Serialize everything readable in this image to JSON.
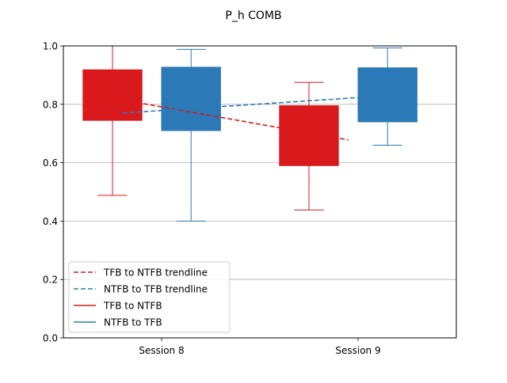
{
  "chart_data": {
    "type": "box",
    "title": "P_h COMB",
    "xlabel": "",
    "ylabel": "",
    "categories": [
      "Session 8",
      "Session 9"
    ],
    "ylim": [
      0,
      1.0
    ],
    "yticks": [
      "0.0",
      "0.2",
      "0.4",
      "0.6",
      "0.8",
      "1.0"
    ],
    "ytick_values": [
      0.0,
      0.2,
      0.4,
      0.6,
      0.8,
      1.0
    ],
    "grid": "horizontal",
    "legend_placement": "lower-left",
    "colors": {
      "tfb_to_ntfb": "#d9191c",
      "ntfb_to_tfb": "#2c79b7",
      "grid": "#b0b0b0"
    },
    "series": [
      {
        "name": "TFB to NTFB",
        "color": "#d9191c",
        "offset": -0.25,
        "boxes": [
          {
            "category": "Session 8",
            "whislo": 0.488,
            "q1": 0.745,
            "q3": 0.918,
            "whishi": 1.0
          },
          {
            "category": "Session 9",
            "whislo": 0.438,
            "q1": 0.59,
            "q3": 0.795,
            "whishi": 0.875
          }
        ]
      },
      {
        "name": "NTFB to TFB",
        "color": "#2c79b7",
        "offset": 0.15,
        "boxes": [
          {
            "category": "Session 8",
            "whislo": 0.4,
            "q1": 0.71,
            "q3": 0.927,
            "whishi": 0.988
          },
          {
            "category": "Session 9",
            "whislo": 0.66,
            "q1": 0.74,
            "q3": 0.925,
            "whishi": 0.993
          }
        ]
      }
    ],
    "trendlines": [
      {
        "name": "TFB to NTFB trendline",
        "color": "#d9191c",
        "x": [
          -0.2,
          0.95
        ],
        "y": [
          0.815,
          0.678
        ]
      },
      {
        "name": "NTFB to TFB trendline",
        "color": "#2c79b7",
        "x": [
          -0.2,
          1.0
        ],
        "y": [
          0.77,
          0.823
        ]
      }
    ],
    "legend": [
      {
        "label": "TFB to NTFB trendline",
        "style": "dashed",
        "color": "#d9191c"
      },
      {
        "label": "NTFB to TFB trendline",
        "style": "dashed",
        "color": "#2c79b7"
      },
      {
        "label": "TFB to NTFB",
        "style": "solid",
        "color": "#d9191c"
      },
      {
        "label": "NTFB to TFB",
        "style": "solid",
        "color": "#2c79b7"
      }
    ]
  }
}
